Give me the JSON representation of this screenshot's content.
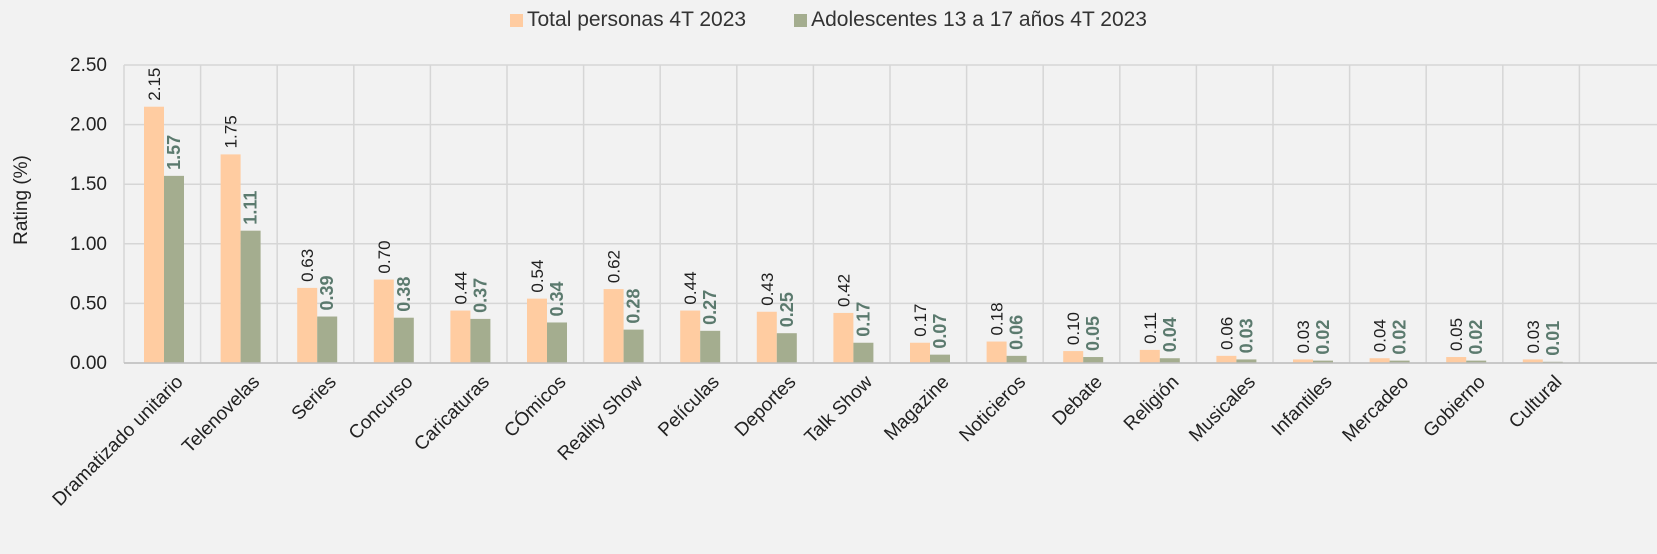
{
  "chart_data": {
    "type": "bar",
    "title": "",
    "ylabel": "Rating (%)",
    "xlabel": "",
    "ylim": [
      0,
      2.5
    ],
    "yticks": [
      0,
      0.5,
      1.0,
      1.5,
      2.0,
      2.5
    ],
    "ytick_labels": [
      "0.00",
      "0.50",
      "1.00",
      "1.50",
      "2.00",
      "2.50"
    ],
    "grid": true,
    "legend_position": "top-center",
    "categories": [
      "Dramatizado unitario",
      "Telenovelas",
      "Series",
      "Concurso",
      "Caricaturas",
      "CÓmicos",
      "Reality Show",
      "Películas",
      "Deportes",
      "Talk Show",
      "Magazine",
      "Noticieros",
      "Debate",
      "Religión",
      "Musicales",
      "Infantiles",
      "Mercadeo",
      "Gobierno",
      "Cultural"
    ],
    "series": [
      {
        "name": "Total personas 4T 2023",
        "color": "#ffcca1",
        "label_color": "#1f1f1f",
        "values": [
          2.15,
          1.75,
          0.63,
          0.7,
          0.44,
          0.54,
          0.62,
          0.44,
          0.43,
          0.42,
          0.17,
          0.18,
          0.1,
          0.11,
          0.06,
          0.03,
          0.04,
          0.05,
          0.03
        ],
        "value_labels": [
          "2.15",
          "1.75",
          "0.63",
          "0.70",
          "0.44",
          "0.54",
          "0.62",
          "0.44",
          "0.43",
          "0.42",
          "0.17",
          "0.18",
          "0.10",
          "0.11",
          "0.06",
          "0.03",
          "0.04",
          "0.05",
          "0.03"
        ]
      },
      {
        "name": "Adolescentes 13 a 17 años 4T 2023",
        "color": "#a4ad8f",
        "label_color": "#5b7a6e",
        "values": [
          1.57,
          1.11,
          0.39,
          0.38,
          0.37,
          0.34,
          0.28,
          0.27,
          0.25,
          0.17,
          0.07,
          0.06,
          0.05,
          0.04,
          0.03,
          0.02,
          0.02,
          0.02,
          0.01
        ],
        "value_labels": [
          "1.57",
          "1.11",
          "0.39",
          "0.38",
          "0.37",
          "0.34",
          "0.28",
          "0.27",
          "0.25",
          "0.17",
          "0.07",
          "0.06",
          "0.05",
          "0.04",
          "0.03",
          "0.02",
          "0.02",
          "0.02",
          "0.01"
        ]
      }
    ]
  }
}
